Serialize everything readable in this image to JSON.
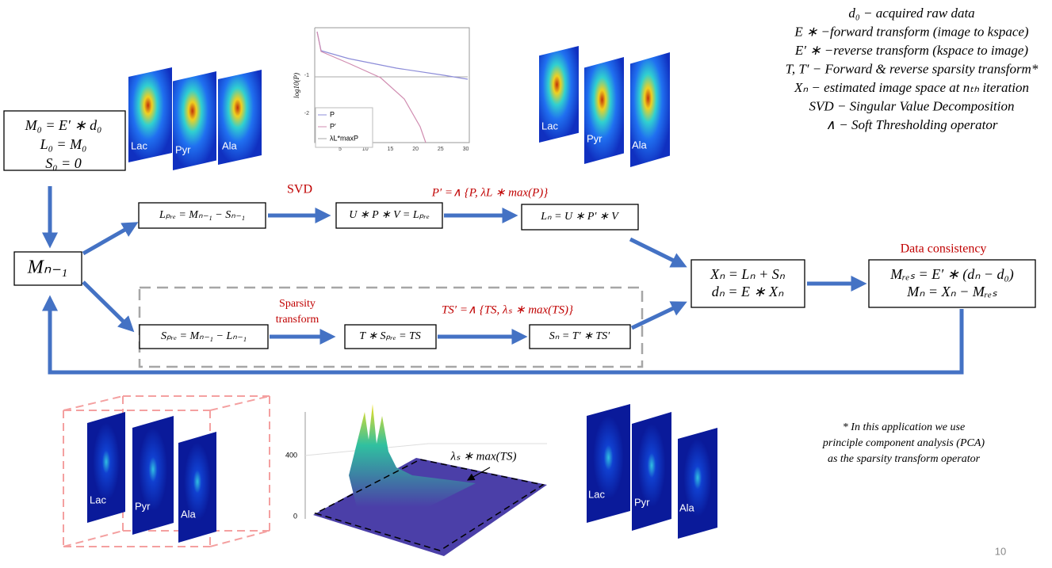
{
  "legend": {
    "lines": [
      "d₀ − acquired raw data",
      "E ∗ −forward transform (image to kspace)",
      "E′ ∗ −reverse transform (kspace to image)",
      "T, T′ − Forward & reverse sparsity transform*",
      "Xₙ − estimated image space at nₜₕ iteration",
      "SVD  − Singular Value Decomposition",
      "∧ − Soft Thresholding operator"
    ]
  },
  "boxes": {
    "init": [
      "M₀ = E′ ∗ d₀",
      "L₀ = M₀",
      "S₀ = 0"
    ],
    "m_prev": "Mₙ₋₁",
    "l_pre": "Lₚᵣₑ = Mₙ₋₁ − Sₙ₋₁",
    "usv": "U ∗ P ∗ V = Lₚᵣₑ",
    "l_n": "Lₙ = U ∗ P′ ∗ V",
    "s_pre": "Sₚᵣₑ = Mₙ₋₁ − Lₙ₋₁",
    "ts": "T ∗ Sₚᵣₑ = TS",
    "s_n": "Sₙ = T′ ∗ TS′",
    "x_n": [
      "Xₙ = Lₙ + Sₙ",
      "dₙ = E ∗ Xₙ"
    ],
    "m_res": [
      "Mᵣₑₛ = E′ ∗ (dₙ − d₀)",
      "Mₙ = Xₙ − Mᵣₑₛ"
    ]
  },
  "labels": {
    "svd": "SVD",
    "p_prime": "P′ =∧ {P, λL ∗ max(P)}",
    "sparsity": [
      "Sparsity",
      "transform"
    ],
    "ts_prime": "TS′ =∧ {TS, λₛ ∗ max(TS)}",
    "data_consistency": "Data consistency"
  },
  "images": {
    "top_left": [
      "Lac",
      "Pyr",
      "Ala"
    ],
    "top_right": [
      "Lac",
      "Pyr",
      "Ala"
    ],
    "bottom_left": [
      "Lac",
      "Pyr",
      "Ala"
    ],
    "bottom_right": [
      "Lac",
      "Pyr",
      "Ala"
    ]
  },
  "plot": {
    "ylabel": "log10(P)",
    "xticks": [
      "5",
      "10",
      "15",
      "20",
      "25",
      "30"
    ],
    "yticks": [
      "-1",
      "-2"
    ],
    "legend": [
      "P",
      "P′",
      "λL*maxP"
    ]
  },
  "surface": {
    "yticks": [
      "400",
      "0"
    ],
    "annotation": "λₛ ∗ max(TS)"
  },
  "footnote": [
    "* In this application we use",
    "principle component analysis (PCA)",
    "as the sparsity transform operator"
  ],
  "page_number": "10"
}
